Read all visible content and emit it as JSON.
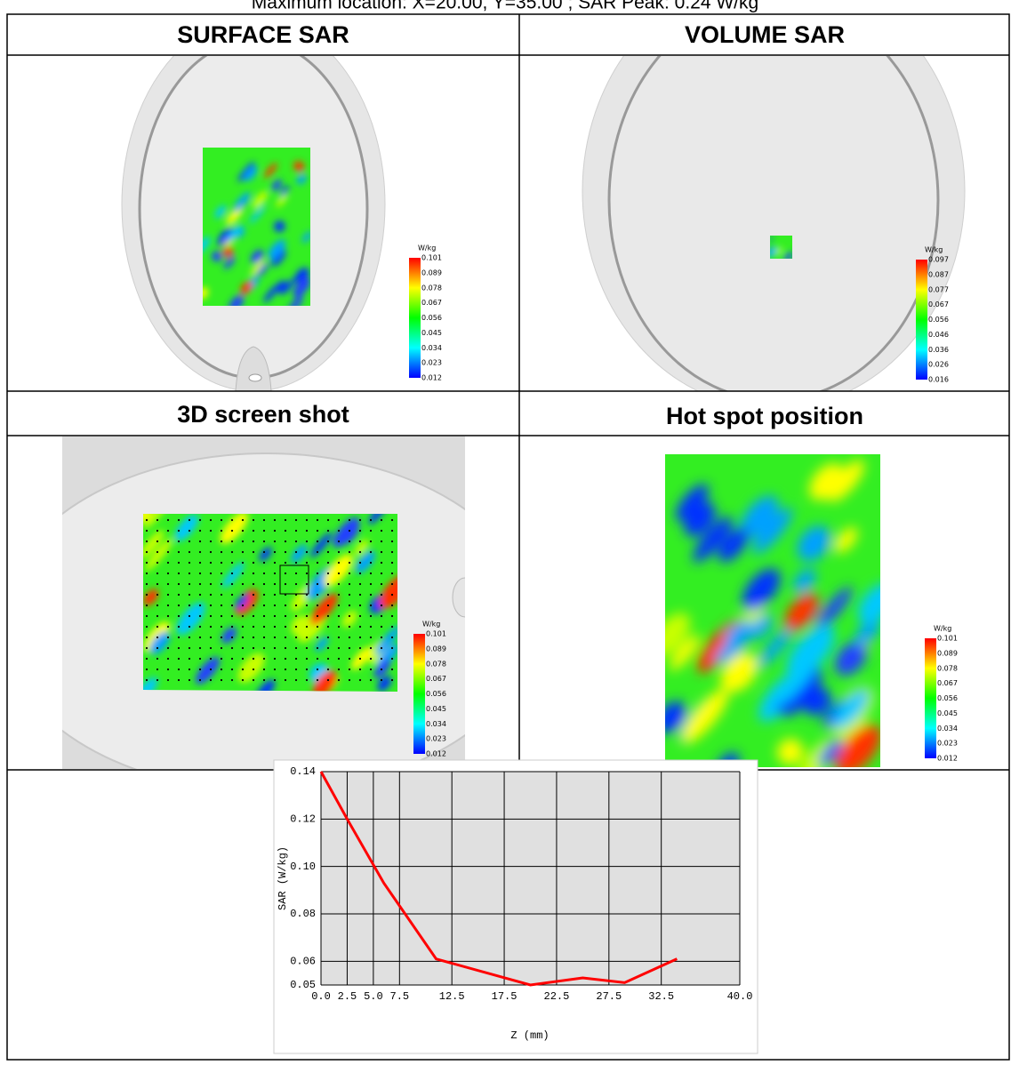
{
  "header": {
    "text": "Maximum location: X=20.00, Y=35.00 ; SAR Peak: 0.24 W/kg"
  },
  "panels": [
    {
      "title": "SURFACE SAR",
      "legend": {
        "unit": "W/kg",
        "ticks": [
          0.101,
          0.089,
          0.078,
          0.067,
          0.056,
          0.045,
          0.034,
          0.023,
          0.012
        ]
      }
    },
    {
      "title": "VOLUME SAR",
      "legend": {
        "unit": "W/kg",
        "ticks": [
          0.097,
          0.087,
          0.077,
          0.067,
          0.056,
          0.046,
          0.036,
          0.026,
          0.016
        ]
      }
    },
    {
      "title": "3D screen shot",
      "legend": {
        "unit": "W/kg",
        "ticks": [
          0.101,
          0.089,
          0.078,
          0.067,
          0.056,
          0.045,
          0.034,
          0.023,
          0.012
        ]
      }
    },
    {
      "title": "Hot spot position",
      "legend": {
        "unit": "W/kg",
        "ticks": [
          0.101,
          0.089,
          0.078,
          0.067,
          0.056,
          0.045,
          0.034,
          0.023,
          0.012
        ]
      }
    }
  ],
  "chart_data": {
    "type": "line",
    "xlabel": "Z (mm)",
    "ylabel": "SAR (W/kg)",
    "x": [
      0,
      2.5,
      6,
      11,
      20,
      25,
      29,
      34
    ],
    "values": [
      0.14,
      0.12,
      0.093,
      0.061,
      0.05,
      0.053,
      0.051,
      0.061
    ],
    "color": "#ff0000",
    "xlim": [
      0,
      40
    ],
    "xticks": [
      {
        "value": 0,
        "label": "0.0"
      },
      2.5,
      {
        "value": 5,
        "label": "5.0"
      },
      7.5,
      12.5,
      17.5,
      22.5,
      27.5,
      32.5,
      {
        "value": 40,
        "label": "40.0"
      }
    ],
    "ylim": [
      0.05,
      0.14
    ],
    "yticks": [
      0.14,
      0.12,
      {
        "value": 0.1,
        "label": "0.10"
      },
      0.08,
      0.06,
      0.05
    ],
    "grid": true
  }
}
